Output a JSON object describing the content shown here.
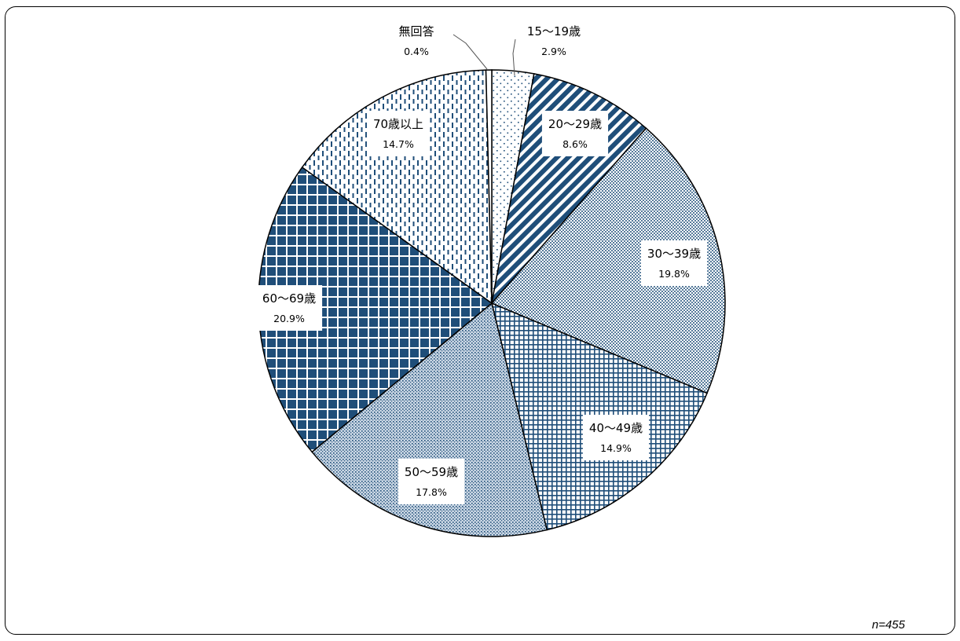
{
  "chart_data": {
    "type": "pie",
    "note": "n=455",
    "slices": [
      {
        "label": "15〜19歳",
        "value": 2.9,
        "display": "2.9%",
        "pattern": "dots-sparse"
      },
      {
        "label": "20〜29歳",
        "value": 8.6,
        "display": "8.6%",
        "pattern": "diagonal-stripes"
      },
      {
        "label": "30〜39歳",
        "value": 19.8,
        "display": "19.8%",
        "pattern": "fine-lattice"
      },
      {
        "label": "40〜49歳",
        "value": 14.9,
        "display": "14.9%",
        "pattern": "white-grid"
      },
      {
        "label": "50〜59歳",
        "value": 17.8,
        "display": "17.8%",
        "pattern": "dots-dense"
      },
      {
        "label": "60〜69歳",
        "value": 20.9,
        "display": "20.9%",
        "pattern": "bold-grid"
      },
      {
        "label": "70歳以上",
        "value": 14.7,
        "display": "14.7%",
        "pattern": "vertical-dashes"
      },
      {
        "label": "無回答",
        "value": 0.4,
        "display": "0.4%",
        "pattern": "solid-white"
      }
    ],
    "colors": {
      "navy": "#1f4e79",
      "outline": "#000000",
      "background": "#ffffff"
    },
    "start_angle": "12 o'clock",
    "direction": "clockwise"
  }
}
